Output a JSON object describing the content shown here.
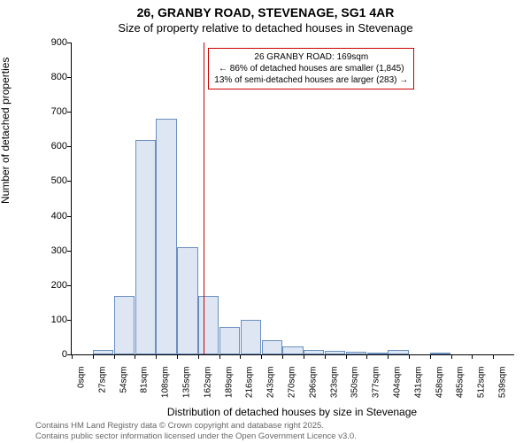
{
  "title_line1": "26, GRANBY ROAD, STEVENAGE, SG1 4AR",
  "title_line2": "Size of property relative to detached houses in Stevenage",
  "ylabel": "Number of detached properties",
  "xlabel": "Distribution of detached houses by size in Stevenage",
  "footer1": "Contains HM Land Registry data © Crown copyright and database right 2025.",
  "footer2": "Contains public sector information licensed under the Open Government Licence v3.0.",
  "chart": {
    "type": "bar",
    "background_color": "#ffffff",
    "bar_fill": "#dde6f2",
    "bar_stroke": "#6a8fbf",
    "bar_stroke_width": 1,
    "ylim": [
      0,
      900
    ],
    "ytick_step": 100,
    "yticks": [
      0,
      100,
      200,
      300,
      400,
      500,
      600,
      700,
      800,
      900
    ],
    "xtick_labels": [
      "0sqm",
      "27sqm",
      "54sqm",
      "81sqm",
      "108sqm",
      "135sqm",
      "162sqm",
      "189sqm",
      "216sqm",
      "243sqm",
      "270sqm",
      "296sqm",
      "323sqm",
      "350sqm",
      "377sqm",
      "404sqm",
      "431sqm",
      "458sqm",
      "485sqm",
      "512sqm",
      "539sqm"
    ],
    "bars": [
      0,
      12,
      170,
      620,
      680,
      310,
      170,
      80,
      100,
      40,
      22,
      14,
      10,
      8,
      6,
      14,
      0,
      4,
      0,
      0,
      0
    ],
    "reference_line": {
      "x_value": 169,
      "x_max": 566,
      "color": "#cc0000",
      "width": 1
    },
    "callout": {
      "line1": "26 GRANBY ROAD: 169sqm",
      "line2": "← 86% of detached houses are smaller (1,845)",
      "line3": "13% of semi-detached houses are larger (283) →",
      "border_color": "#cc0000",
      "text_color": "#000000"
    },
    "label_fontsize": 12,
    "tick_fontsize": 11
  }
}
